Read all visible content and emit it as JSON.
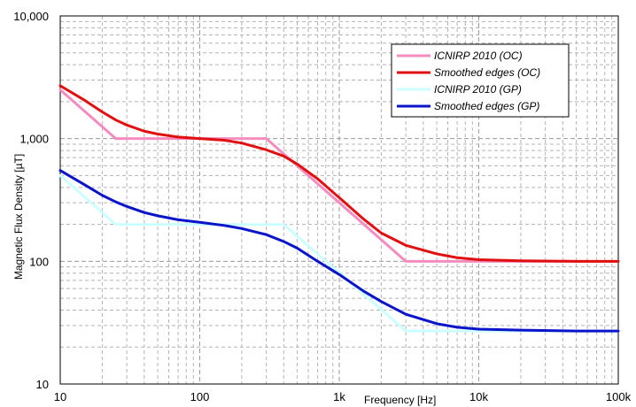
{
  "chart_data": {
    "type": "line",
    "title": "",
    "xlabel": "Frequency [Hz]",
    "ylabel": "Magnetic Flux Density [µT]",
    "x_scale": "log",
    "y_scale": "log",
    "xlim": [
      10,
      100000
    ],
    "ylim": [
      10,
      10000
    ],
    "grid": true,
    "legend_position": "top-right",
    "x_ticks": [
      "10",
      "100",
      "1k",
      "10k",
      "100k"
    ],
    "y_ticks": [
      "10",
      "100",
      "1,000",
      "10,000"
    ],
    "series": [
      {
        "name": "ICNIRP 2010 (OC)",
        "color": "#f48cbf",
        "x": [
          10,
          25,
          300,
          3000,
          100000
        ],
        "y": [
          2500,
          1000,
          1000,
          100,
          100
        ]
      },
      {
        "name": "Smoothed edges (OC)",
        "color": "#e01010",
        "x": [
          10,
          15,
          20,
          25,
          30,
          40,
          50,
          70,
          100,
          150,
          200,
          300,
          400,
          500,
          700,
          1000,
          1500,
          2000,
          3000,
          5000,
          7000,
          10000,
          20000,
          50000,
          100000
        ],
        "y": [
          2700,
          2050,
          1650,
          1420,
          1290,
          1150,
          1090,
          1030,
          1000,
          970,
          920,
          810,
          720,
          620,
          470,
          330,
          220,
          170,
          135,
          115,
          107,
          103,
          101,
          100,
          100
        ]
      },
      {
        "name": "ICNIRP 2010 (GP)",
        "color": "#ccffff",
        "x": [
          10,
          25,
          400,
          3000,
          100000
        ],
        "y": [
          500,
          200,
          200,
          27,
          27
        ]
      },
      {
        "name": "Smoothed edges (GP)",
        "color": "#0a14c8",
        "x": [
          10,
          15,
          20,
          25,
          30,
          40,
          50,
          70,
          100,
          150,
          200,
          300,
          400,
          500,
          700,
          1000,
          1500,
          2000,
          3000,
          5000,
          7000,
          10000,
          20000,
          50000,
          100000
        ],
        "y": [
          550,
          420,
          345,
          305,
          280,
          250,
          235,
          218,
          208,
          196,
          185,
          165,
          145,
          128,
          100,
          78,
          57,
          47,
          37,
          31,
          29,
          28,
          27.5,
          27,
          27
        ]
      }
    ]
  }
}
